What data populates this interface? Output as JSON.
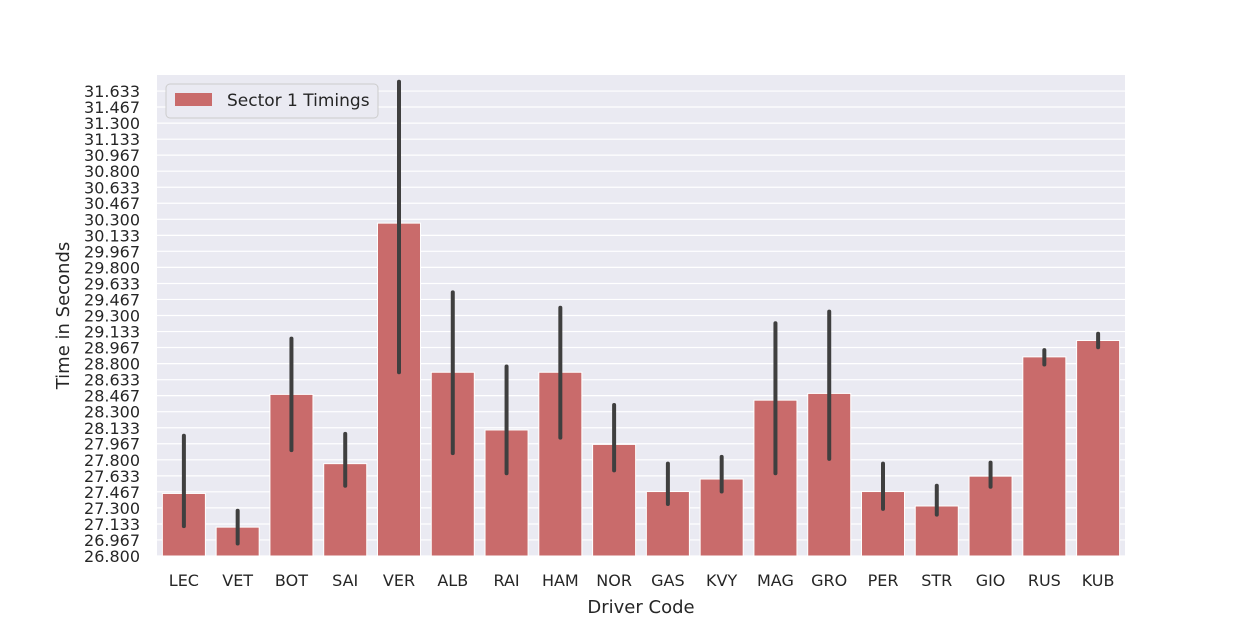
{
  "chart_data": {
    "type": "bar",
    "xlabel": "Driver Code",
    "ylabel": "Time in Seconds",
    "legend": {
      "placement": "top-left",
      "entries": [
        "Sector 1 Timings"
      ]
    },
    "grid": true,
    "ylim": [
      26.8,
      31.8
    ],
    "yticks": [
      "26.800",
      "26.967",
      "27.133",
      "27.300",
      "27.467",
      "27.633",
      "27.800",
      "27.967",
      "28.133",
      "28.300",
      "28.467",
      "28.633",
      "28.800",
      "28.967",
      "29.133",
      "29.300",
      "29.467",
      "29.633",
      "29.800",
      "29.967",
      "30.133",
      "30.300",
      "30.467",
      "30.633",
      "30.800",
      "30.967",
      "31.133",
      "31.300",
      "31.467",
      "31.633"
    ],
    "categories": [
      "LEC",
      "VET",
      "BOT",
      "SAI",
      "VER",
      "ALB",
      "RAI",
      "HAM",
      "NOR",
      "GAS",
      "KVY",
      "MAG",
      "GRO",
      "PER",
      "STR",
      "GIO",
      "RUS",
      "KUB"
    ],
    "series": [
      {
        "name": "Sector 1 Timings",
        "color": "#c96b6b",
        "values": [
          27.45,
          27.1,
          28.48,
          27.76,
          30.26,
          28.71,
          28.11,
          28.71,
          27.96,
          27.47,
          27.6,
          28.42,
          28.49,
          27.47,
          27.32,
          27.63,
          28.87,
          29.04
        ],
        "error_low": [
          27.11,
          26.93,
          27.9,
          27.53,
          28.71,
          27.87,
          27.66,
          28.03,
          27.69,
          27.34,
          27.47,
          27.66,
          27.81,
          27.29,
          27.23,
          27.52,
          28.79,
          28.97
        ],
        "error_high": [
          28.05,
          27.27,
          29.06,
          28.07,
          31.73,
          29.54,
          28.77,
          29.38,
          28.37,
          27.76,
          27.83,
          29.22,
          29.34,
          27.76,
          27.53,
          27.77,
          28.94,
          29.11
        ]
      }
    ]
  }
}
